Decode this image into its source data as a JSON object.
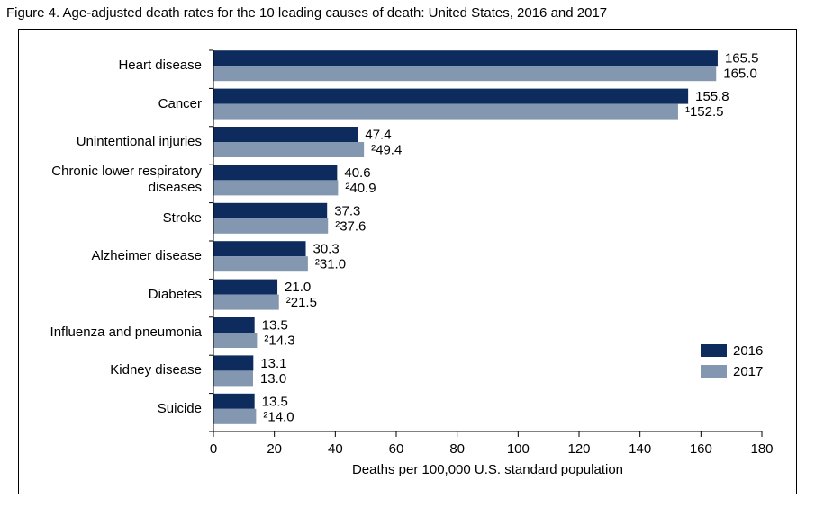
{
  "chart_data": {
    "type": "hbar",
    "title": "Figure 4. Age-adjusted death rates for the 10 leading causes of death: United States, 2016 and 2017",
    "categories": [
      "Heart disease",
      "Cancer",
      "Unintentional injuries",
      "Chronic lower respiratory diseases",
      "Stroke",
      "Alzheimer disease",
      "Diabetes",
      "Influenza and pneumonia",
      "Kidney disease",
      "Suicide"
    ],
    "series": [
      {
        "name": "2016",
        "color": "#0e2b5e",
        "values": [
          165.5,
          155.8,
          47.4,
          40.6,
          37.3,
          30.3,
          21.0,
          13.5,
          13.1,
          13.5
        ],
        "value_labels": [
          "165.5",
          "155.8",
          "47.4",
          "40.6",
          "37.3",
          "30.3",
          "21.0",
          "13.5",
          "13.1",
          "13.5"
        ]
      },
      {
        "name": "2017",
        "color": "#8497b0",
        "values": [
          165.0,
          152.5,
          49.4,
          40.9,
          37.6,
          31.0,
          21.5,
          14.3,
          13.0,
          14.0
        ],
        "value_labels": [
          "165.0",
          "¹152.5",
          "²49.4",
          "²40.9",
          "²37.6",
          "²31.0",
          "²21.5",
          "²14.3",
          "13.0",
          "²14.0"
        ]
      }
    ],
    "xlabel": "Deaths per 100,000 U.S. standard population",
    "xlim": [
      0,
      180
    ],
    "xticks": [
      0,
      20,
      40,
      60,
      80,
      100,
      120,
      140,
      160,
      180
    ],
    "legend": "right"
  }
}
